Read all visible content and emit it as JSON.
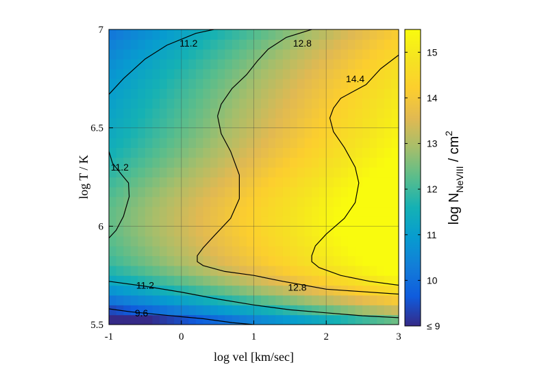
{
  "chart_data": {
    "type": "heatmap",
    "title": "",
    "xlabel": "log vel [km/sec]",
    "ylabel": "log T / K",
    "xlim": [
      -1,
      3
    ],
    "ylim": [
      5.5,
      7
    ],
    "x_ticks": [
      -1,
      0,
      1,
      2,
      3
    ],
    "x_tick_labels": [
      "-1",
      "0",
      "1",
      "2",
      "3"
    ],
    "y_ticks": [
      5.5,
      6,
      6.5,
      7
    ],
    "y_tick_labels": [
      "5.5",
      "6",
      "6.5",
      "7"
    ],
    "grid": true,
    "colorbar": {
      "label_main": "log N",
      "label_sub": "NeVIII",
      "label_units": "/ cm",
      "label_sup": "2",
      "range": [
        9,
        15.5
      ],
      "ticks": [
        9,
        10,
        11,
        12,
        13,
        14,
        15
      ],
      "tick_labels": [
        "≤ 9",
        "10",
        "11",
        "12",
        "13",
        "14",
        "15"
      ],
      "colormap": "parula"
    },
    "contours": [
      {
        "level": 9.6,
        "label": "9.6",
        "points": [
          [
            -1,
            5.58
          ],
          [
            -0.7,
            5.565
          ],
          [
            0,
            5.54
          ],
          [
            0.3,
            5.53
          ],
          [
            0.7,
            5.51
          ],
          [
            1,
            5.5
          ]
        ],
        "label_at": [
          -0.55,
          5.56
        ]
      },
      {
        "level": 11.2,
        "label": "11.2",
        "points": [
          [
            -1,
            5.72
          ],
          [
            -0.5,
            5.695
          ],
          [
            0,
            5.665
          ],
          [
            0.5,
            5.63
          ],
          [
            1,
            5.6
          ],
          [
            1.5,
            5.575
          ],
          [
            2,
            5.56
          ],
          [
            2.5,
            5.545
          ],
          [
            3,
            5.535
          ]
        ],
        "label_at": [
          -0.5,
          5.7
        ]
      },
      {
        "level": 11.2,
        "label": "11.2",
        "points": [
          [
            -1,
            6.67
          ],
          [
            -0.8,
            6.75
          ],
          [
            -0.5,
            6.85
          ],
          [
            -0.2,
            6.92
          ],
          [
            0.2,
            6.98
          ],
          [
            0.45,
            7.0
          ]
        ],
        "label_at": [
          0.1,
          6.93
        ]
      },
      {
        "level": 11.2,
        "label": "11.2",
        "points": [
          [
            -1,
            6.38
          ],
          [
            -0.95,
            6.32
          ],
          [
            -0.82,
            6.26
          ],
          [
            -0.73,
            6.22
          ],
          [
            -0.72,
            6.15
          ],
          [
            -0.8,
            6.05
          ],
          [
            -0.9,
            5.98
          ],
          [
            -1,
            5.94
          ]
        ],
        "label_at": [
          -0.85,
          6.3
        ]
      },
      {
        "level": 12.8,
        "label": "12.8",
        "points": [
          [
            0.5,
            6.56
          ],
          [
            0.55,
            6.62
          ],
          [
            0.7,
            6.7
          ],
          [
            0.9,
            6.77
          ],
          [
            1.05,
            6.84
          ],
          [
            1.2,
            6.9
          ],
          [
            1.45,
            6.96
          ],
          [
            1.8,
            7.0
          ]
        ],
        "label_at": [
          1.67,
          6.93
        ]
      },
      {
        "level": 12.8,
        "label": "12.8",
        "points": [
          [
            0.5,
            6.56
          ],
          [
            0.55,
            6.47
          ],
          [
            0.68,
            6.38
          ],
          [
            0.8,
            6.26
          ],
          [
            0.8,
            6.14
          ],
          [
            0.68,
            6.04
          ],
          [
            0.45,
            5.95
          ],
          [
            0.3,
            5.89
          ],
          [
            0.22,
            5.85
          ],
          [
            0.22,
            5.82
          ],
          [
            0.3,
            5.8
          ],
          [
            0.6,
            5.77
          ],
          [
            1.0,
            5.75
          ],
          [
            1.4,
            5.72
          ],
          [
            1.7,
            5.7
          ],
          [
            2.0,
            5.68
          ],
          [
            2.4,
            5.67
          ],
          [
            3,
            5.655
          ]
        ],
        "label_at": [
          1.6,
          5.69
        ]
      },
      {
        "level": 14.4,
        "label": "14.4",
        "points": [
          [
            3,
            6.87
          ],
          [
            2.75,
            6.8
          ],
          [
            2.55,
            6.72
          ],
          [
            2.35,
            6.68
          ],
          [
            2.2,
            6.65
          ],
          [
            2.1,
            6.6
          ],
          [
            2.05,
            6.55
          ],
          [
            2.1,
            6.48
          ],
          [
            2.25,
            6.4
          ],
          [
            2.4,
            6.3
          ],
          [
            2.45,
            6.22
          ],
          [
            2.4,
            6.12
          ],
          [
            2.25,
            6.04
          ],
          [
            2.0,
            5.96
          ],
          [
            1.85,
            5.9
          ],
          [
            1.8,
            5.85
          ],
          [
            1.8,
            5.82
          ],
          [
            1.9,
            5.79
          ],
          [
            2.2,
            5.75
          ],
          [
            2.6,
            5.72
          ],
          [
            3,
            5.7
          ]
        ],
        "label_at": [
          2.4,
          6.75
        ]
      }
    ]
  }
}
